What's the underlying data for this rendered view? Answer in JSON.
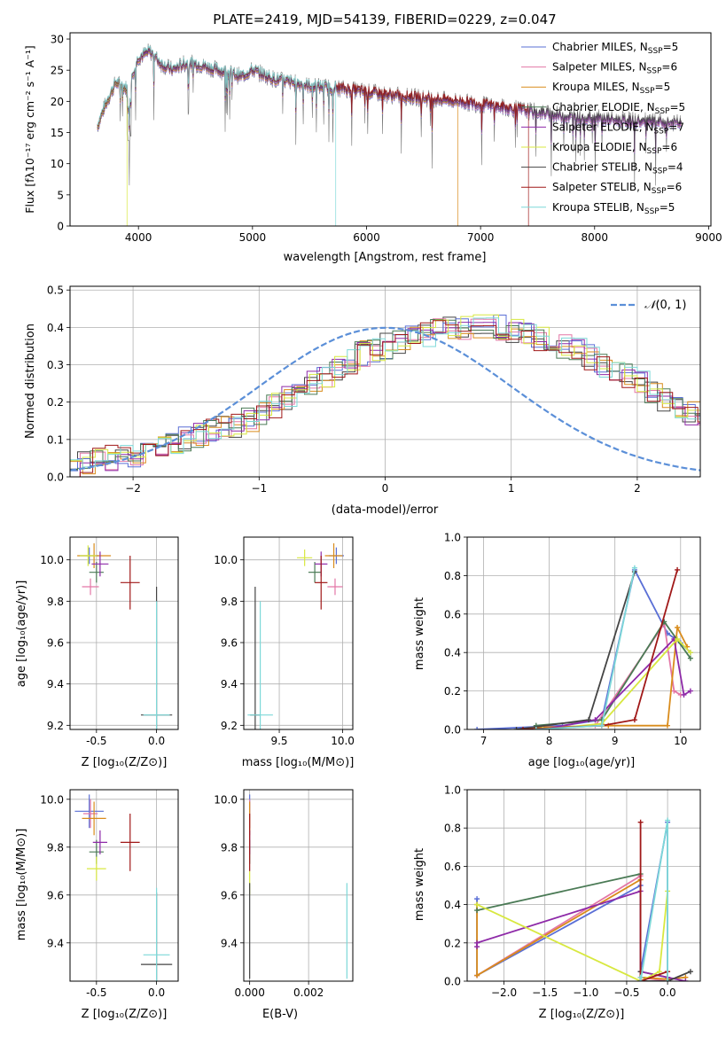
{
  "spectrum": {
    "title": "PLATE=2419, MJD=54139, FIBERID=0229, z=0.047",
    "xlabel": "wavelength [Angstrom, rest frame]",
    "ylabel": "Flux [fλ10⁻¹⁷ erg cm⁻² s⁻¹ A⁻¹]",
    "legend": [
      {
        "label": "Chabrier MILES, N",
        "sub": "SSP",
        "n": "=5",
        "color": "#5a6fd6"
      },
      {
        "label": "Salpeter MILES, N",
        "sub": "SSP",
        "n": "=6",
        "color": "#e377a6"
      },
      {
        "label": "Kroupa MILES, N",
        "sub": "SSP",
        "n": "=5",
        "color": "#d98c1c"
      },
      {
        "label": "Chabrier ELODIE, N",
        "sub": "SSP",
        "n": "=5",
        "color": "#4a7a55"
      },
      {
        "label": "Salpeter ELODIE, N",
        "sub": "SSP",
        "n": "=7",
        "color": "#8e2aa8"
      },
      {
        "label": "Kroupa ELODIE, N",
        "sub": "SSP",
        "n": "=6",
        "color": "#d8e840"
      },
      {
        "label": "Chabrier STELIB, N",
        "sub": "SSP",
        "n": "=4",
        "color": "#444444"
      },
      {
        "label": "Salpeter STELIB, N",
        "sub": "SSP",
        "n": "=6",
        "color": "#a01818"
      },
      {
        "label": "Kroupa STELIB, N",
        "sub": "SSP",
        "n": "=5",
        "color": "#7dd8d8"
      }
    ]
  },
  "residuals": {
    "xlabel": "(data-model)/error",
    "ylabel": "Normed distribution",
    "legend_label": "N(0,1)",
    "legend_sym": "𝒩",
    "legend_rest": "(0, 1)",
    "legend_color": "#5b8fd8"
  },
  "panels": {
    "age_z": {
      "xlabel": "Z [log₁₀(Z/Z⊙)]",
      "ylabel": "age  [log₁₀(age/yr)]"
    },
    "age_mass": {
      "xlabel": "mass [log₁₀(M/M⊙)]"
    },
    "mw_age": {
      "xlabel": "age  [log₁₀(age/yr)]",
      "ylabel": "mass weight"
    },
    "mass_z": {
      "xlabel": "Z [log₁₀(Z/Z⊙)]",
      "ylabel": "mass [log₁₀(M/M⊙)]"
    },
    "mass_ebv": {
      "xlabel": "E(B-V)"
    },
    "mw_z": {
      "xlabel": "Z [log₁₀(Z/Z⊙)]",
      "ylabel": "mass weight"
    }
  },
  "chart_data": [
    {
      "type": "line",
      "title": "PLATE=2419, MJD=54139, FIBERID=0229, z=0.047",
      "xlabel": "wavelength [Angstrom, rest frame]",
      "ylabel": "Flux [fλ10⁻¹⁷ erg cm⁻² s⁻¹ A⁻¹]",
      "xlim": [
        3400,
        9020
      ],
      "ylim": [
        0,
        31
      ],
      "xticks": [
        4000,
        5000,
        6000,
        7000,
        8000,
        9000
      ],
      "yticks": [
        0,
        5,
        10,
        15,
        20,
        25,
        30
      ],
      "legend_position": "top-right",
      "spectrum_envelope": {
        "x": [
          3640,
          3700,
          3800,
          3900,
          4000,
          4100,
          4200,
          4300,
          4400,
          4500,
          4700,
          4900,
          5000,
          5200,
          5500,
          5800,
          6000,
          6200,
          6500,
          6800,
          7000,
          7200,
          7400,
          7600,
          7800,
          8000,
          8200,
          8400,
          8600,
          8750
        ],
        "y": [
          16,
          19,
          23,
          22,
          27,
          28,
          26,
          25,
          26,
          26,
          25,
          24,
          25,
          23.5,
          22.5,
          22,
          21.5,
          21,
          20.5,
          20,
          19.5,
          19,
          18.5,
          18,
          17.5,
          17.3,
          17,
          16.8,
          16.6,
          16.5
        ]
      },
      "model_cutoffs": [
        {
          "series": "Kroupa ELODIE",
          "x": 3900
        },
        {
          "series": "Kroupa STELIB",
          "x": 5730
        },
        {
          "series": "Kroupa MILES",
          "x": 6800
        },
        {
          "series": "Salpeter STELIB",
          "x": 7420
        }
      ]
    },
    {
      "type": "histogram",
      "xlabel": "(data-model)/error",
      "ylabel": "Normed distribution",
      "xlim": [
        -2.5,
        2.5
      ],
      "ylim": [
        0,
        0.51
      ],
      "xticks": [
        -2,
        -1,
        0,
        1,
        2
      ],
      "yticks": [
        0.0,
        0.1,
        0.2,
        0.3,
        0.4,
        0.5
      ],
      "bin_width": 0.1,
      "base_distribution": [
        0.02,
        0.04,
        0.05,
        0.05,
        0.06,
        0.06,
        0.07,
        0.08,
        0.09,
        0.1,
        0.11,
        0.12,
        0.13,
        0.14,
        0.15,
        0.17,
        0.19,
        0.21,
        0.23,
        0.25,
        0.27,
        0.29,
        0.31,
        0.33,
        0.34,
        0.35,
        0.36,
        0.37,
        0.38,
        0.39,
        0.4,
        0.4,
        0.4,
        0.4,
        0.4,
        0.39,
        0.38,
        0.37,
        0.36,
        0.35,
        0.34,
        0.32,
        0.3,
        0.29,
        0.27,
        0.25,
        0.23,
        0.21,
        0.19,
        0.17,
        0.15,
        0.14,
        0.12,
        0.11,
        0.1,
        0.09,
        0.08,
        0.07,
        0.06,
        0.05
      ],
      "legend": "N(0,1)",
      "legend_position": "top-right"
    },
    {
      "type": "scatter",
      "name": "age vs Z",
      "xlabel": "Z [log₁₀(Z/Z⊙)]",
      "ylabel": "age  [log₁₀(age/yr)]",
      "xlim": [
        -0.72,
        0.18
      ],
      "ylim": [
        9.18,
        10.11
      ],
      "xticks": [
        -0.5,
        0.0
      ],
      "yticks": [
        9.2,
        9.4,
        9.6,
        9.8,
        10.0
      ],
      "points": [
        {
          "x": -0.56,
          "y": 10.02,
          "xerr": 0.08,
          "yerr": 0.04,
          "color": "#5a6fd6"
        },
        {
          "x": -0.55,
          "y": 9.87,
          "xerr": 0.07,
          "yerr": 0.04,
          "color": "#e377a6"
        },
        {
          "x": -0.52,
          "y": 10.02,
          "xerr": 0.14,
          "yerr": 0.06,
          "color": "#d98c1c"
        },
        {
          "x": -0.5,
          "y": 9.94,
          "xerr": 0.06,
          "yerr": 0.05,
          "color": "#4a7a55"
        },
        {
          "x": -0.47,
          "y": 9.98,
          "xerr": 0.07,
          "yerr": 0.06,
          "color": "#8e2aa8"
        },
        {
          "x": -0.57,
          "y": 10.02,
          "xerr": 0.07,
          "yerr": 0.05,
          "color": "#d8e840"
        },
        {
          "x": 0.0,
          "y": 9.25,
          "xerr": 0.13,
          "yerr": 0.62,
          "color": "#444444"
        },
        {
          "x": -0.22,
          "y": 9.89,
          "xerr": 0.08,
          "yerr": 0.13,
          "color": "#a01818"
        },
        {
          "x": 0.0,
          "y": 9.25,
          "xerr": 0.11,
          "yerr": 0.55,
          "color": "#7dd8d8"
        }
      ]
    },
    {
      "type": "scatter",
      "name": "age vs mass",
      "xlabel": "mass [log₁₀(M/M⊙)]",
      "xlim": [
        9.22,
        10.08
      ],
      "ylim": [
        9.18,
        10.11
      ],
      "xticks": [
        9.5,
        10.0
      ],
      "yticks": [
        9.2,
        9.4,
        9.6,
        9.8,
        10.0
      ],
      "points": [
        {
          "x": 9.95,
          "y": 10.02,
          "xerr": 0.06,
          "yerr": 0.04,
          "color": "#5a6fd6"
        },
        {
          "x": 9.94,
          "y": 9.87,
          "xerr": 0.06,
          "yerr": 0.04,
          "color": "#e377a6"
        },
        {
          "x": 9.93,
          "y": 10.02,
          "xerr": 0.07,
          "yerr": 0.06,
          "color": "#d98c1c"
        },
        {
          "x": 9.78,
          "y": 9.94,
          "xerr": 0.05,
          "yerr": 0.05,
          "color": "#4a7a55"
        },
        {
          "x": 9.83,
          "y": 9.98,
          "xerr": 0.05,
          "yerr": 0.06,
          "color": "#8e2aa8"
        },
        {
          "x": 9.7,
          "y": 10.01,
          "xerr": 0.06,
          "yerr": 0.04,
          "color": "#d8e840"
        },
        {
          "x": 9.31,
          "y": 9.25,
          "xerr": 0.04,
          "yerr": 0.62,
          "color": "#444444"
        },
        {
          "x": 9.83,
          "y": 9.89,
          "xerr": 0.05,
          "yerr": 0.13,
          "color": "#a01818"
        },
        {
          "x": 9.35,
          "y": 9.25,
          "xerr": 0.1,
          "yerr": 0.55,
          "color": "#7dd8d8"
        }
      ]
    },
    {
      "type": "line",
      "name": "mass weight vs age",
      "xlabel": "age  [log₁₀(age/yr)]",
      "ylabel": "mass weight",
      "xlim": [
        6.75,
        10.3
      ],
      "ylim": [
        0,
        1.0
      ],
      "xticks": [
        7,
        8,
        9,
        10
      ],
      "yticks": [
        0.0,
        0.2,
        0.4,
        0.6,
        0.8,
        1.0
      ],
      "series": [
        {
          "name": "Chabrier MILES",
          "color": "#5a6fd6",
          "x": [
            6.9,
            8.2,
            8.8,
            9.3,
            9.8,
            10.0,
            10.15
          ],
          "y": [
            0.0,
            0.02,
            0.05,
            0.83,
            0.5,
            0.45,
            0.4
          ]
        },
        {
          "name": "Salpeter MILES",
          "color": "#e377a6",
          "x": [
            7.8,
            8.7,
            9.75,
            9.9,
            10.0
          ],
          "y": [
            0.01,
            0.02,
            0.55,
            0.2,
            0.18
          ]
        },
        {
          "name": "Kroupa MILES",
          "color": "#d98c1c",
          "x": [
            7.8,
            8.9,
            9.8,
            9.95,
            10.1
          ],
          "y": [
            0.01,
            0.02,
            0.02,
            0.53,
            0.43
          ]
        },
        {
          "name": "Chabrier ELODIE",
          "color": "#4a7a55",
          "x": [
            7.8,
            8.8,
            9.75,
            10.15
          ],
          "y": [
            0.02,
            0.05,
            0.56,
            0.37
          ]
        },
        {
          "name": "Salpeter ELODIE",
          "color": "#8e2aa8",
          "x": [
            7.9,
            8.7,
            9.9,
            10.05,
            10.15
          ],
          "y": [
            0.0,
            0.05,
            0.47,
            0.18,
            0.2
          ]
        },
        {
          "name": "Kroupa ELODIE",
          "color": "#d8e840",
          "x": [
            7.9,
            8.8,
            9.95,
            10.15
          ],
          "y": [
            0.0,
            0.03,
            0.47,
            0.4
          ]
        },
        {
          "name": "Chabrier STELIB",
          "color": "#444444",
          "x": [
            7.5,
            8.6,
            9.3
          ],
          "y": [
            0.0,
            0.05,
            0.82
          ]
        },
        {
          "name": "Salpeter STELIB",
          "color": "#a01818",
          "x": [
            7.6,
            8.8,
            9.3,
            9.95
          ],
          "y": [
            0.0,
            0.02,
            0.05,
            0.83
          ]
        },
        {
          "name": "Kroupa STELIB",
          "color": "#7dd8d8",
          "x": [
            7.8,
            8.8,
            9.3
          ],
          "y": [
            0.0,
            0.02,
            0.84
          ]
        }
      ]
    },
    {
      "type": "scatter",
      "name": "mass vs Z",
      "xlabel": "Z [log₁₀(Z/Z⊙)]",
      "ylabel": "mass [log₁₀(M/M⊙)]",
      "xlim": [
        -0.72,
        0.18
      ],
      "ylim": [
        9.24,
        10.04
      ],
      "xticks": [
        -0.5,
        0.0
      ],
      "yticks": [
        9.4,
        9.6,
        9.8,
        10.0
      ],
      "points": [
        {
          "x": -0.56,
          "y": 9.95,
          "xerr": 0.12,
          "yerr": 0.07,
          "color": "#5a6fd6"
        },
        {
          "x": -0.55,
          "y": 9.94,
          "xerr": 0.06,
          "yerr": 0.06,
          "color": "#e377a6"
        },
        {
          "x": -0.52,
          "y": 9.92,
          "xerr": 0.1,
          "yerr": 0.07,
          "color": "#d98c1c"
        },
        {
          "x": -0.5,
          "y": 9.78,
          "xerr": 0.06,
          "yerr": 0.05,
          "color": "#4a7a55"
        },
        {
          "x": -0.47,
          "y": 9.82,
          "xerr": 0.06,
          "yerr": 0.05,
          "color": "#8e2aa8"
        },
        {
          "x": -0.5,
          "y": 9.71,
          "xerr": 0.08,
          "yerr": 0.05,
          "color": "#d8e840"
        },
        {
          "x": 0.0,
          "y": 9.31,
          "xerr": 0.13,
          "yerr": 0.3,
          "color": "#444444"
        },
        {
          "x": -0.22,
          "y": 9.82,
          "xerr": 0.08,
          "yerr": 0.12,
          "color": "#a01818"
        },
        {
          "x": 0.0,
          "y": 9.35,
          "xerr": 0.11,
          "yerr": 0.28,
          "color": "#7dd8d8"
        }
      ]
    },
    {
      "type": "scatter",
      "name": "mass vs E(B-V)",
      "xlabel": "E(B-V)",
      "xlim": [
        -0.0002,
        0.0035
      ],
      "ylim": [
        9.24,
        10.04
      ],
      "xticks": [
        0.0,
        0.002
      ],
      "yticks": [
        9.4,
        9.6,
        9.8,
        10.0
      ],
      "points": [
        {
          "x": 0.0,
          "y": 9.95,
          "yerr": 0.07,
          "color": "#5a6fd6"
        },
        {
          "x": 0.0,
          "y": 9.94,
          "yerr": 0.06,
          "color": "#e377a6"
        },
        {
          "x": 0.0,
          "y": 9.92,
          "yerr": 0.07,
          "color": "#d98c1c"
        },
        {
          "x": 0.0,
          "y": 9.78,
          "yerr": 0.05,
          "color": "#4a7a55"
        },
        {
          "x": 0.0,
          "y": 9.82,
          "yerr": 0.05,
          "color": "#8e2aa8"
        },
        {
          "x": 0.0,
          "y": 9.65,
          "yerr": 0.05,
          "color": "#d8e840"
        },
        {
          "x": 0.0,
          "y": 9.45,
          "yerr": 0.2,
          "color": "#444444"
        },
        {
          "x": 0.0,
          "y": 9.82,
          "yerr": 0.12,
          "color": "#a01818"
        },
        {
          "x": 0.0033,
          "y": 9.45,
          "yerr": 0.2,
          "color": "#7dd8d8"
        }
      ]
    },
    {
      "type": "line",
      "name": "mass weight vs Z",
      "xlabel": "Z [log₁₀(Z/Z⊙)]",
      "ylabel": "mass weight",
      "xlim": [
        -2.45,
        0.4
      ],
      "ylim": [
        0,
        1.0
      ],
      "xticks": [
        -2.0,
        -1.5,
        -1.0,
        -0.5,
        0.0
      ],
      "yticks": [
        0.0,
        0.2,
        0.4,
        0.6,
        0.8,
        1.0
      ],
      "series": [
        {
          "name": "Chabrier MILES",
          "color": "#5a6fd6",
          "x": [
            -2.33,
            -2.33,
            -0.33,
            -0.33,
            0.0,
            0.0
          ],
          "y": [
            0.43,
            0.03,
            0.5,
            0.05,
            0.83,
            0.02
          ]
        },
        {
          "name": "Salpeter MILES",
          "color": "#e377a6",
          "x": [
            -2.33,
            -0.33,
            -0.33,
            0.0
          ],
          "y": [
            0.03,
            0.55,
            0.02,
            0.0
          ]
        },
        {
          "name": "Kroupa MILES",
          "color": "#d98c1c",
          "x": [
            -2.33,
            -2.33,
            -0.33,
            -0.33,
            0.0,
            0.22
          ],
          "y": [
            0.4,
            0.03,
            0.53,
            0.02,
            0.01,
            0.02
          ]
        },
        {
          "name": "Chabrier ELODIE",
          "color": "#4a7a55",
          "x": [
            -2.33,
            -0.33,
            -0.33,
            0.0,
            0.0
          ],
          "y": [
            0.37,
            0.56,
            0.05,
            0.02,
            0.0
          ]
        },
        {
          "name": "Salpeter ELODIE",
          "color": "#8e2aa8",
          "x": [
            -2.33,
            -2.33,
            -0.33,
            -0.33,
            0.0,
            0.22
          ],
          "y": [
            0.18,
            0.2,
            0.47,
            0.05,
            0.02,
            0.0
          ]
        },
        {
          "name": "Kroupa ELODIE",
          "color": "#d8e840",
          "x": [
            -2.33,
            -0.33,
            -0.1,
            0.0
          ],
          "y": [
            0.4,
            0.0,
            0.05,
            0.47
          ]
        },
        {
          "name": "Chabrier STELIB",
          "color": "#444444",
          "x": [
            -0.33,
            -0.33,
            0.0,
            0.28
          ],
          "y": [
            0.05,
            0.0,
            0.0,
            0.05
          ]
        },
        {
          "name": "Salpeter STELIB",
          "color": "#a01818",
          "x": [
            -0.33,
            -0.33,
            0.0,
            0.0
          ],
          "y": [
            0.83,
            0.0,
            0.05,
            0.0
          ]
        },
        {
          "name": "Kroupa STELIB",
          "color": "#7dd8d8",
          "x": [
            -0.33,
            -0.33,
            0.0,
            0.0
          ],
          "y": [
            0.02,
            0.0,
            0.84,
            0.0
          ]
        }
      ]
    }
  ]
}
